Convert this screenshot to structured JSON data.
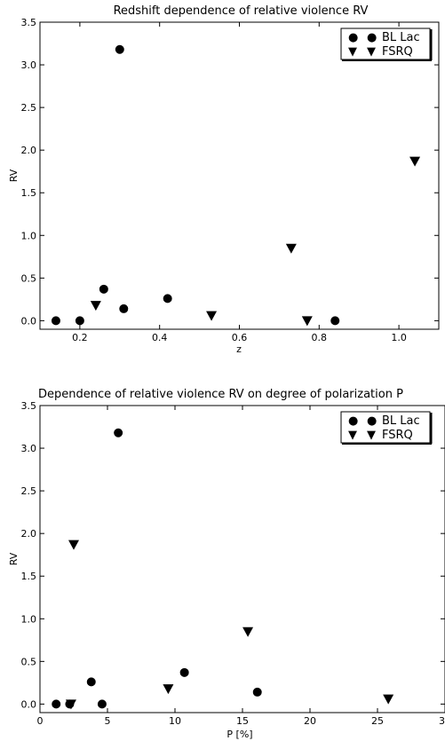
{
  "chart_data": [
    {
      "type": "scatter",
      "title": "Redshift dependence of relative violence RV",
      "xlabel": "z",
      "ylabel": "RV",
      "xlim": [
        0.1,
        1.1
      ],
      "ylim": [
        -0.1,
        3.5
      ],
      "xticks": [
        0.2,
        0.4,
        0.6,
        0.8,
        1.0
      ],
      "xtick_labels": [
        "0.2",
        "0.4",
        "0.6",
        "0.8",
        "1.0"
      ],
      "yticks": [
        0.0,
        0.5,
        1.0,
        1.5,
        2.0,
        2.5,
        3.0,
        3.5
      ],
      "ytick_labels": [
        "0.0",
        "0.5",
        "1.0",
        "1.5",
        "2.0",
        "2.5",
        "3.0",
        "3.5"
      ],
      "grid": false,
      "legend_position": "top-right",
      "legend_symbols": [
        "●",
        "▼"
      ],
      "series": [
        {
          "name": "BL Lac",
          "marker": "circle",
          "color": "#000000",
          "points": [
            {
              "x": 0.14,
              "y": 0.0
            },
            {
              "x": 0.2,
              "y": 0.0
            },
            {
              "x": 0.26,
              "y": 0.37
            },
            {
              "x": 0.3,
              "y": 3.18
            },
            {
              "x": 0.31,
              "y": 0.14
            },
            {
              "x": 0.42,
              "y": 0.26
            },
            {
              "x": 0.84,
              "y": 0.0
            }
          ]
        },
        {
          "name": "FSRQ",
          "marker": "triangle-down",
          "color": "#000000",
          "points": [
            {
              "x": 0.24,
              "y": 0.18
            },
            {
              "x": 0.53,
              "y": 0.06
            },
            {
              "x": 0.73,
              "y": 0.85
            },
            {
              "x": 0.77,
              "y": 0.0
            },
            {
              "x": 1.04,
              "y": 1.87
            }
          ]
        }
      ]
    },
    {
      "type": "scatter",
      "title": "Dependence of relative violence RV on degree of polarization P",
      "xlabel": "P [%]",
      "ylabel": "RV",
      "xlim": [
        0,
        30
      ],
      "ylim": [
        -0.1,
        3.5
      ],
      "xticks": [
        0,
        5,
        10,
        15,
        20,
        25,
        30
      ],
      "xtick_labels": [
        "0",
        "5",
        "10",
        "15",
        "20",
        "25",
        "30"
      ],
      "yticks": [
        0.0,
        0.5,
        1.0,
        1.5,
        2.0,
        2.5,
        3.0,
        3.5
      ],
      "ytick_labels": [
        "0.0",
        "0.5",
        "1.0",
        "1.5",
        "2.0",
        "2.5",
        "3.0",
        "3.5"
      ],
      "grid": false,
      "legend_position": "top-right",
      "legend_symbols": [
        "●",
        "▼"
      ],
      "series": [
        {
          "name": "BL Lac",
          "marker": "circle",
          "color": "#000000",
          "points": [
            {
              "x": 1.2,
              "y": 0.0
            },
            {
              "x": 2.2,
              "y": 0.0
            },
            {
              "x": 3.8,
              "y": 0.26
            },
            {
              "x": 4.6,
              "y": 0.0
            },
            {
              "x": 5.8,
              "y": 3.18
            },
            {
              "x": 10.7,
              "y": 0.37
            },
            {
              "x": 16.1,
              "y": 0.14
            }
          ]
        },
        {
          "name": "FSRQ",
          "marker": "triangle-down",
          "color": "#000000",
          "points": [
            {
              "x": 2.3,
              "y": 0.0
            },
            {
              "x": 2.5,
              "y": 1.87
            },
            {
              "x": 9.5,
              "y": 0.18
            },
            {
              "x": 15.4,
              "y": 0.85
            },
            {
              "x": 25.8,
              "y": 0.06
            }
          ]
        }
      ]
    }
  ]
}
